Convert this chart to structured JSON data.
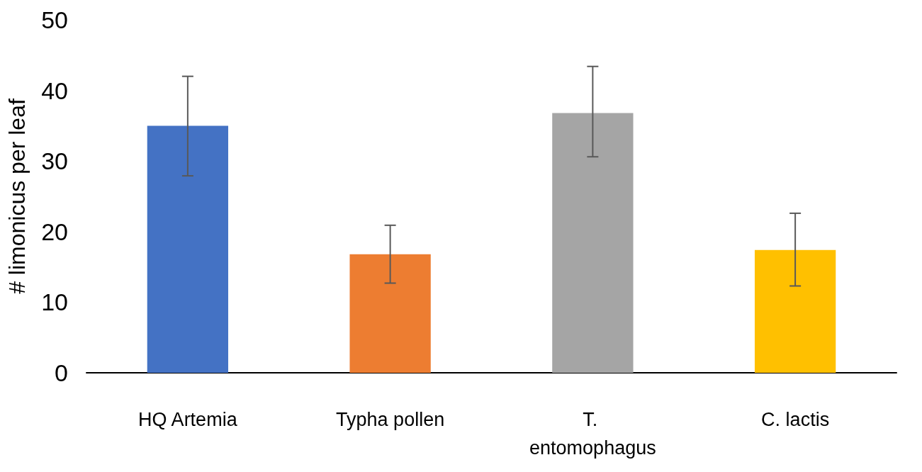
{
  "chart_data": {
    "type": "bar",
    "ylabel": "# limonicus per leaf",
    "categories": [
      "HQ Artemia",
      "Typha pollen",
      "T. entomophagus",
      "C. lactis"
    ],
    "values": [
      35.0,
      16.8,
      36.8,
      17.4
    ],
    "colors": [
      "#4472c4",
      "#ed7d31",
      "#a5a5a5",
      "#ffc000"
    ],
    "errors": [
      [
        27.9,
        42.0
      ],
      [
        12.7,
        20.9
      ],
      [
        30.6,
        43.4
      ],
      [
        12.3,
        22.6
      ]
    ],
    "ylim": [
      0,
      50
    ],
    "yticks": [
      0,
      10,
      20,
      30,
      40,
      50
    ],
    "grid": false
  }
}
